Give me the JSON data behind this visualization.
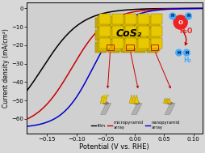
{
  "xlabel": "Potential (V vs. RHE)",
  "ylabel": "Current density (mA/cm²)",
  "xlim": [
    -0.185,
    0.115
  ],
  "ylim": [
    -68,
    3
  ],
  "xticks": [
    -0.15,
    -0.1,
    -0.05,
    0.0,
    0.05,
    0.1
  ],
  "yticks": [
    0,
    -10,
    -20,
    -30,
    -40,
    -50,
    -60
  ],
  "bg_color": "#d8d8d8",
  "plot_bg": "#d0d0d0",
  "curves": [
    {
      "name": "film",
      "color": "#000000",
      "onset": -0.158,
      "steep": 30,
      "label": "film"
    },
    {
      "name": "micro",
      "color": "#cc0000",
      "onset": -0.108,
      "steep": 33,
      "label": "micropyramid\narray"
    },
    {
      "name": "nano",
      "color": "#0000cc",
      "onset": -0.072,
      "steep": 38,
      "label": "nanopyramid\narray"
    }
  ],
  "grid_color": "#e8c800",
  "grid_edge": "#a08000",
  "fiber_color": "#b0b0b0",
  "fiber_dark": "#787878",
  "inset_bg": "#c8c8c8",
  "cos2_text": "CoS₂",
  "water_text": "H₂O",
  "h2_text": "H₂",
  "red_arrow": "#cc0000",
  "water_color": "#ee2222",
  "h2_color": "#44aaff"
}
